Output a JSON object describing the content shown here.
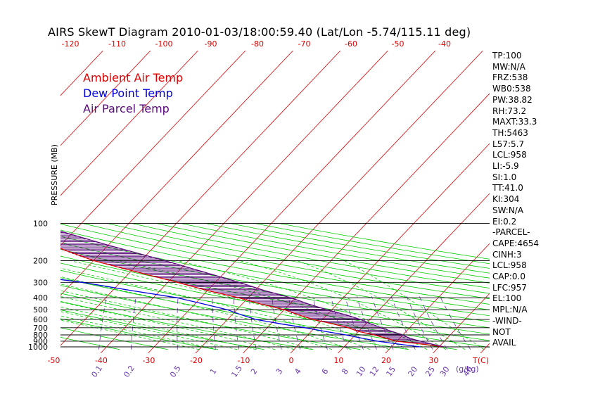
{
  "title": "AIRS SkewT Diagram 2010-01-03/18:00:59.40 (Lat/Lon -5.74/115.11 deg)",
  "y_axis_label": "PRESSURE (MB)",
  "x_unit_label": "T(C)",
  "mixing_unit_label": "(g/kg)",
  "legend": [
    {
      "label": "Ambient Air Temp",
      "color": "#dd0000"
    },
    {
      "label": "Dew Point Temp",
      "color": "#0000dd"
    },
    {
      "label": "Air Parcel Temp",
      "color": "#5a0a7a"
    }
  ],
  "indices": [
    "TP:100",
    "MW:N/A",
    "FRZ:538",
    "WB0:538",
    "PW:38.82",
    "RH:73.2",
    "MAXT:33.3",
    "TH:5463",
    "L57:5.7",
    "LCL:958",
    "LI:-5.9",
    "SI:1.0",
    "TT:41.0",
    "KI:304",
    "SW:N/A",
    "EI:0.2",
    "-PARCEL-",
    "CAPE:4654",
    "CINH:3",
    "LCL:958",
    "CAP:0.0",
    "LFC:957",
    "EL:100",
    "MPL:N/A",
    "-WIND-",
    "NOT",
    "AVAIL"
  ],
  "colors": {
    "temperature": "#dd0000",
    "dewpoint": "#0000dd",
    "parcel": "#5a0a7a",
    "isotherm": "#dd0000",
    "dry_adiabat": "#00cc00",
    "moist_adiabat": "#00cc00",
    "mixing_ratio": "#6633aa",
    "isobar": "#000000"
  },
  "chart_data": {
    "type": "line",
    "title": "AIRS SkewT Diagram 2010-01-03/18:00:59.40 (Lat/Lon -5.74/115.11 deg)",
    "ylabel": "PRESSURE (MB)",
    "xlabel": "T(C)",
    "y_scale": "log",
    "pressure_levels": [
      100,
      200,
      300,
      400,
      500,
      600,
      700,
      800,
      900,
      1000
    ],
    "bottom_temperature_ticks": [
      -50,
      -40,
      -30,
      -20,
      -10,
      0,
      10,
      20,
      30
    ],
    "top_temperature_ticks": [
      -120,
      -110,
      -100,
      -90,
      -80,
      -70,
      -60,
      -50,
      -40
    ],
    "mixing_ratio_ticks": [
      "0.1",
      "0.2",
      "0.5",
      "1",
      "1.5",
      "2",
      "3",
      "4",
      "6",
      "8",
      "10",
      "12",
      "15",
      "20",
      "25",
      "30",
      "40"
    ],
    "series": [
      {
        "name": "Ambient Air Temp",
        "points": [
          [
            100,
            -85
          ],
          [
            120,
            -80
          ],
          [
            150,
            -72
          ],
          [
            200,
            -60
          ],
          [
            250,
            -48
          ],
          [
            300,
            -38
          ],
          [
            350,
            -30
          ],
          [
            400,
            -22
          ],
          [
            450,
            -16
          ],
          [
            500,
            -10
          ],
          [
            550,
            -6
          ],
          [
            600,
            -2
          ],
          [
            650,
            3
          ],
          [
            700,
            7
          ],
          [
            750,
            10
          ],
          [
            800,
            14
          ],
          [
            850,
            17
          ],
          [
            900,
            20
          ],
          [
            950,
            26
          ],
          [
            1000,
            31
          ]
        ]
      },
      {
        "name": "Dew Point Temp",
        "points": [
          [
            100,
            -95
          ],
          [
            150,
            -90
          ],
          [
            200,
            -84
          ],
          [
            250,
            -76
          ],
          [
            300,
            -58
          ],
          [
            350,
            -46
          ],
          [
            400,
            -35
          ],
          [
            450,
            -28
          ],
          [
            500,
            -22
          ],
          [
            550,
            -18
          ],
          [
            600,
            -14
          ],
          [
            650,
            -8
          ],
          [
            700,
            -2
          ],
          [
            750,
            3
          ],
          [
            800,
            8
          ],
          [
            850,
            12
          ],
          [
            900,
            16
          ],
          [
            950,
            21
          ],
          [
            1000,
            26
          ]
        ]
      },
      {
        "name": "Air Parcel Temp",
        "points": [
          [
            100,
            -80
          ],
          [
            120,
            -71
          ],
          [
            150,
            -60
          ],
          [
            200,
            -45
          ],
          [
            250,
            -34
          ],
          [
            300,
            -25
          ],
          [
            350,
            -18
          ],
          [
            400,
            -11
          ],
          [
            450,
            -6
          ],
          [
            500,
            -1
          ],
          [
            550,
            4
          ],
          [
            600,
            8
          ],
          [
            650,
            11
          ],
          [
            700,
            14
          ],
          [
            750,
            17
          ],
          [
            800,
            20
          ],
          [
            850,
            22
          ],
          [
            900,
            25
          ],
          [
            950,
            28
          ],
          [
            1000,
            31
          ]
        ]
      }
    ]
  }
}
